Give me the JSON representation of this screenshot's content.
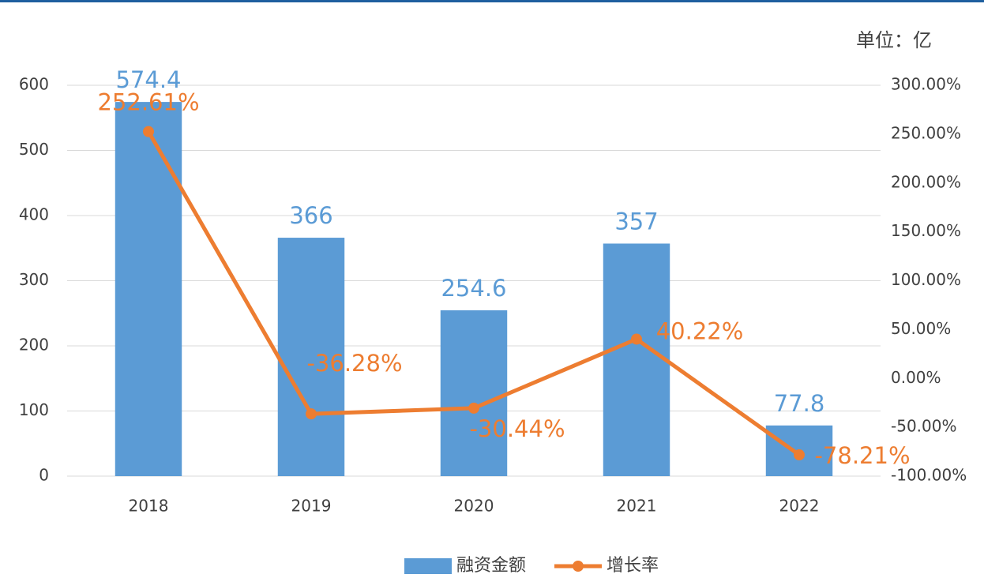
{
  "chart_data": {
    "type": "bar",
    "annotation": "单位：亿",
    "categories": [
      "2018",
      "2019",
      "2020",
      "2021",
      "2022"
    ],
    "series": [
      {
        "name": "融资金额",
        "type": "bar",
        "color": "#5b9bd5",
        "values": [
          574.4,
          366,
          254.6,
          357,
          77.8
        ]
      },
      {
        "name": "增长率",
        "type": "line",
        "axis": "y2",
        "color": "#ed7d31",
        "values": [
          252.61,
          -36.28,
          -30.44,
          40.22,
          -78.21
        ],
        "value_labels": [
          "252.61%",
          "-36.28%",
          "-30.44%",
          "40.22%",
          "-78.21%"
        ]
      }
    ],
    "ylim": [
      0,
      600
    ],
    "yticks": [
      0,
      100,
      200,
      300,
      400,
      500,
      600
    ],
    "y2lim": [
      -100,
      300
    ],
    "y2ticks": [
      {
        "value": -100,
        "label": "-100.00%"
      },
      {
        "value": -50,
        "label": "-50.00%"
      },
      {
        "value": 0,
        "label": "0.00%"
      },
      {
        "value": 50,
        "label": "50.00%"
      },
      {
        "value": 100,
        "label": "100.00%"
      },
      {
        "value": 150,
        "label": "150.00%"
      },
      {
        "value": 200,
        "label": "200.00%"
      },
      {
        "value": 250,
        "label": "250.00%"
      },
      {
        "value": 300,
        "label": "300.00%"
      }
    ],
    "grid": true,
    "legend": "bottom"
  }
}
